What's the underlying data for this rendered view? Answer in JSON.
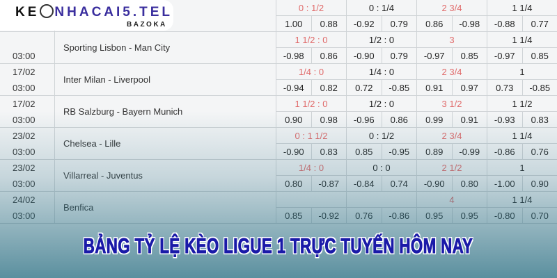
{
  "logo": {
    "brand_prefix": "KE",
    "brand_main": "NHACAI5.TEL",
    "tagline": "BAZOKA"
  },
  "banner": "BẢNG TỶ LỆ KÈO LIGUE 1 TRỰC TUYẾN HÔM NAY",
  "colors": {
    "handicap_red": "#e06a6a",
    "banner_blue": "#1a1aa8"
  },
  "matches": [
    {
      "date": "",
      "time": "",
      "teams": "",
      "lines": [
        "0 : 1/2",
        "0 : 1/4",
        "2 3/4",
        "1 1/4"
      ],
      "odds": [
        "1.00",
        "0.88",
        "-0.92",
        "0.79",
        "0.86",
        "-0.98",
        "-0.88",
        "0.77"
      ]
    },
    {
      "date": "",
      "time": "03:00",
      "teams": "Sporting Lisbon - Man City",
      "lines": [
        "1 1/2 : 0",
        "1/2 : 0",
        "3",
        "1 1/4"
      ],
      "odds": [
        "-0.98",
        "0.86",
        "-0.90",
        "0.79",
        "-0.97",
        "0.85",
        "-0.97",
        "0.85"
      ]
    },
    {
      "date": "17/02",
      "time": "03:00",
      "teams": "Inter Milan - Liverpool",
      "lines": [
        "1/4 : 0",
        "1/4 : 0",
        "2 3/4",
        "1"
      ],
      "odds": [
        "-0.94",
        "0.82",
        "0.72",
        "-0.85",
        "0.91",
        "0.97",
        "0.73",
        "-0.85"
      ]
    },
    {
      "date": "17/02",
      "time": "03:00",
      "teams": "RB Salzburg - Bayern Munich",
      "lines": [
        "1 1/2 : 0",
        "1/2 : 0",
        "3 1/2",
        "1 1/2"
      ],
      "odds": [
        "0.90",
        "0.98",
        "-0.96",
        "0.86",
        "0.99",
        "0.91",
        "-0.93",
        "0.83"
      ]
    },
    {
      "date": "23/02",
      "time": "03:00",
      "teams": "Chelsea - Lille",
      "lines": [
        "0 : 1 1/2",
        "0 : 1/2",
        "2 3/4",
        "1 1/4"
      ],
      "odds": [
        "-0.90",
        "0.83",
        "0.85",
        "-0.95",
        "0.89",
        "-0.99",
        "-0.86",
        "0.76"
      ]
    },
    {
      "date": "23/02",
      "time": "03:00",
      "teams": "Villarreal - Juventus",
      "lines": [
        "1/4 : 0",
        "0 : 0",
        "2 1/2",
        "1"
      ],
      "odds": [
        "0.80",
        "-0.87",
        "-0.84",
        "0.74",
        "-0.90",
        "0.80",
        "-1.00",
        "0.90"
      ]
    },
    {
      "date": "24/02",
      "time": "03:00",
      "teams": "Benfica",
      "lines": [
        "",
        "",
        "4",
        "1 1/4"
      ],
      "odds": [
        "0.85",
        "-0.92",
        "0.76",
        "-0.86",
        "0.95",
        "0.95",
        "-0.80",
        "0.70"
      ]
    }
  ]
}
